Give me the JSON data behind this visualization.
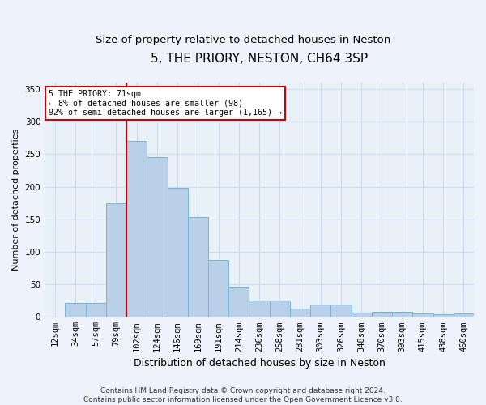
{
  "title": "5, THE PRIORY, NESTON, CH64 3SP",
  "subtitle": "Size of property relative to detached houses in Neston",
  "xlabel": "Distribution of detached houses by size in Neston",
  "ylabel": "Number of detached properties",
  "bar_labels": [
    "12sqm",
    "34sqm",
    "57sqm",
    "79sqm",
    "102sqm",
    "124sqm",
    "146sqm",
    "169sqm",
    "191sqm",
    "214sqm",
    "236sqm",
    "258sqm",
    "281sqm",
    "303sqm",
    "326sqm",
    "348sqm",
    "370sqm",
    "393sqm",
    "415sqm",
    "438sqm",
    "460sqm"
  ],
  "bar_values": [
    0,
    22,
    22,
    175,
    270,
    246,
    198,
    153,
    88,
    46,
    25,
    25,
    13,
    19,
    19,
    6,
    8,
    8,
    5,
    4,
    5
  ],
  "bar_color": "#b8d0e8",
  "bar_edge_color": "#7ab3d9",
  "bg_color": "#e8f0f8",
  "grid_color": "#d0daea",
  "vline_x": 3.5,
  "vline_color": "#cc0000",
  "annotation_text": "5 THE PRIORY: 71sqm\n← 8% of detached houses are smaller (98)\n92% of semi-detached houses are larger (1,165) →",
  "annotation_box_color": "#ffffff",
  "annotation_box_edge": "#cc0000",
  "footer": "Contains HM Land Registry data © Crown copyright and database right 2024.\nContains public sector information licensed under the Open Government Licence v3.0.",
  "ylim": [
    0,
    360
  ],
  "yticks": [
    0,
    50,
    100,
    150,
    200,
    250,
    300,
    350
  ],
  "title_fontsize": 11,
  "subtitle_fontsize": 9.5,
  "xlabel_fontsize": 9,
  "ylabel_fontsize": 8,
  "tick_fontsize": 7.5,
  "footer_fontsize": 6.5
}
